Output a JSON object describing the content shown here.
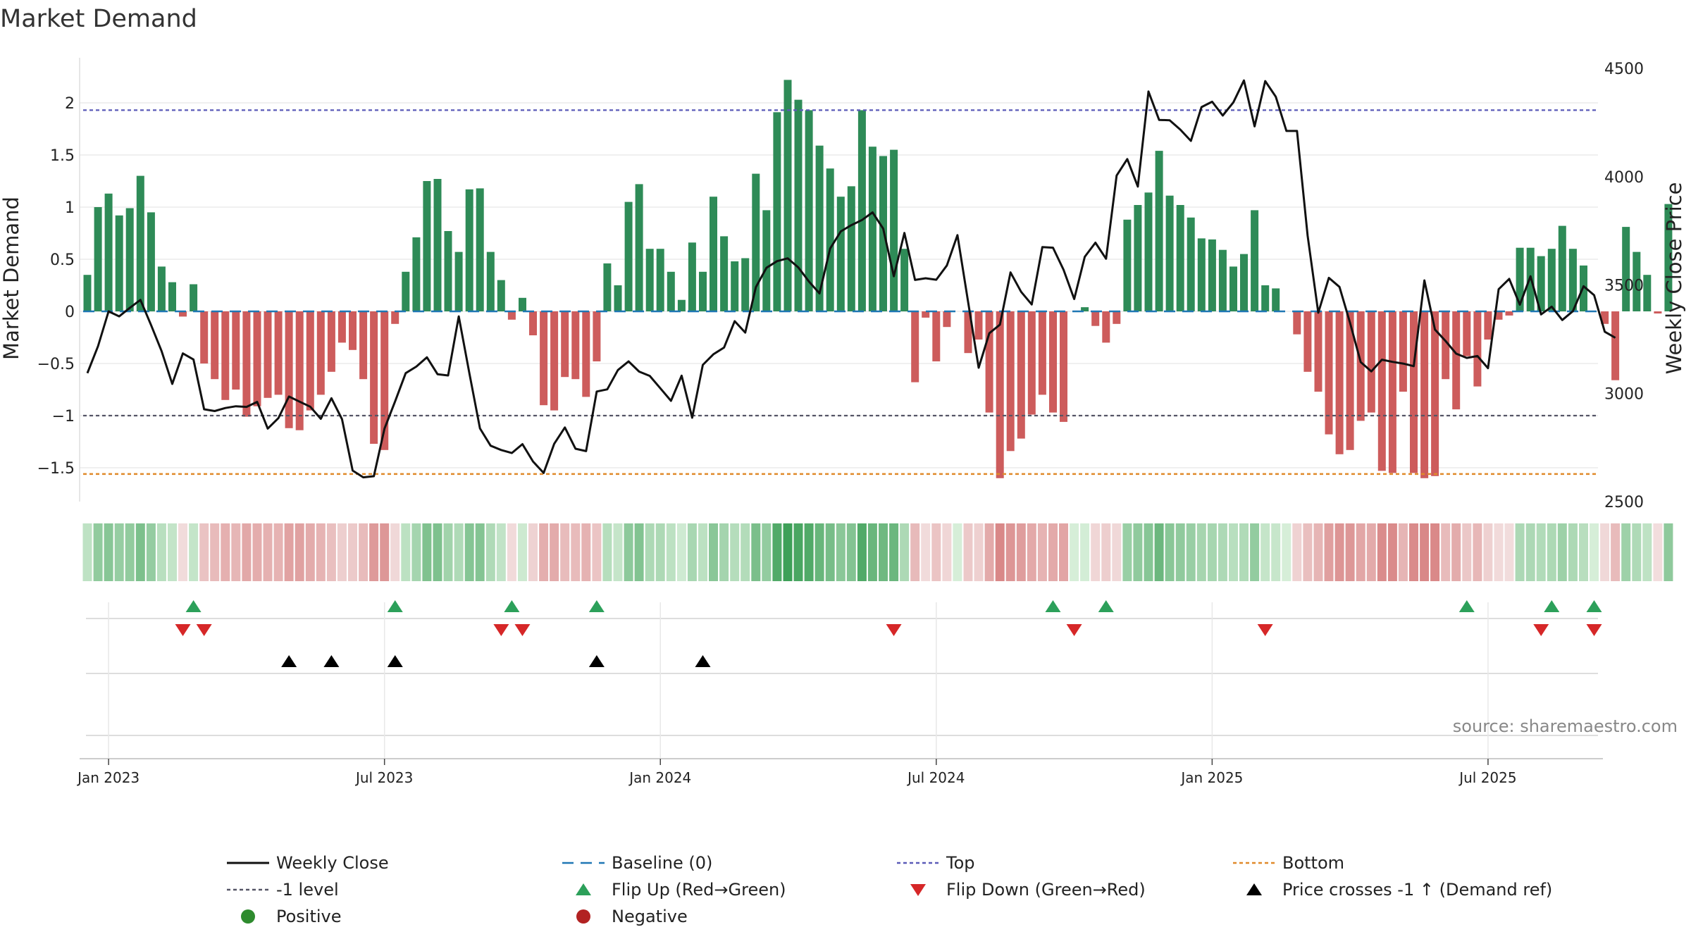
{
  "title": "Market Demand",
  "source": "source: sharemaestro.com",
  "colors": {
    "positive": "#2e8b57",
    "negative": "#cd5c5c",
    "price": "#111111",
    "baseline": "#1f77b4",
    "top": "#5b5bb8",
    "minus1": "#555566",
    "bottom": "#e08a2a",
    "flip_up": "#2ca05a",
    "flip_down": "#d62728",
    "cross": "#000000",
    "legend_pos": "#2e8b2e",
    "legend_neg": "#b22222"
  },
  "chart_data": {
    "type": "bar",
    "title": "Market Demand",
    "ylabel": "Market Demand",
    "y2label": "Weekly Close Price",
    "ylim": [
      -1.82,
      2.42
    ],
    "y2lim": [
      2500,
      4500
    ],
    "yticks": [
      {
        "value": 2,
        "label": "2"
      },
      {
        "value": 1.5,
        "label": "1.5"
      },
      {
        "value": 1,
        "label": "1"
      },
      {
        "value": 0.5,
        "label": "0.5"
      },
      {
        "value": 0,
        "label": "0"
      },
      {
        "value": -0.5,
        "label": "−0.5"
      },
      {
        "value": -1,
        "label": "−1"
      },
      {
        "value": -1.5,
        "label": "−1.5"
      }
    ],
    "y2ticks": [
      {
        "value": 4500,
        "label": "4500"
      },
      {
        "value": 4000,
        "label": "4000"
      },
      {
        "value": 3500,
        "label": "3500"
      },
      {
        "value": 3000,
        "label": "3000"
      },
      {
        "value": 2500,
        "label": "2500"
      }
    ],
    "xticks": [
      {
        "week": 2,
        "label": "Jan 2023"
      },
      {
        "week": 28,
        "label": "Jul 2023"
      },
      {
        "week": 54,
        "label": "Jan 2024"
      },
      {
        "week": 80,
        "label": "Jul 2024"
      },
      {
        "week": 106,
        "label": "Jan 2025"
      },
      {
        "week": 132,
        "label": "Jul 2025"
      }
    ],
    "week_count": 144,
    "reference_lines": {
      "baseline": 0,
      "top": 1.93,
      "minus1": -1,
      "bottom": -1.56
    },
    "demand": [
      0.35,
      1.0,
      1.13,
      0.92,
      0.99,
      1.3,
      0.95,
      0.43,
      0.28,
      -0.05,
      0.26,
      -0.5,
      -0.65,
      -0.85,
      -0.75,
      -1.01,
      -0.91,
      -0.83,
      -0.8,
      -1.12,
      -1.14,
      -0.95,
      -0.8,
      -0.58,
      -0.3,
      -0.37,
      -0.65,
      -1.27,
      -1.33,
      -0.12,
      0.38,
      0.71,
      1.25,
      1.27,
      0.77,
      0.57,
      1.17,
      1.18,
      0.57,
      0.3,
      -0.08,
      0.13,
      -0.23,
      -0.9,
      -0.95,
      -0.63,
      -0.65,
      -0.82,
      -0.48,
      0.46,
      0.25,
      1.05,
      1.22,
      0.6,
      0.6,
      0.38,
      0.11,
      0.66,
      0.38,
      1.1,
      0.72,
      0.48,
      0.51,
      1.32,
      0.97,
      1.91,
      2.22,
      2.03,
      1.93,
      1.59,
      1.37,
      1.1,
      1.2,
      1.93,
      1.58,
      1.49,
      1.55,
      0.6,
      -0.68,
      -0.06,
      -0.48,
      -0.15,
      0,
      -0.4,
      -0.27,
      -0.97,
      -1.6,
      -1.34,
      -1.22,
      -0.99,
      -0.8,
      -0.97,
      -1.06,
      0,
      0.04,
      -0.14,
      -0.3,
      -0.12,
      0.88,
      1.02,
      1.14,
      1.54,
      1.11,
      1.02,
      0.9,
      0.7,
      0.69,
      0.59,
      0.43,
      0.55,
      0.97,
      0.25,
      0.22,
      0,
      -0.22,
      -0.58,
      -0.77,
      -1.18,
      -1.37,
      -1.33,
      -1.05,
      -0.97,
      -1.53,
      -1.55,
      -0.77,
      -1.55,
      -1.6,
      -1.58,
      -0.65,
      -0.94,
      -0.43,
      -0.72,
      -0.27,
      -0.08,
      -0.04,
      0.61,
      0.61,
      0.53,
      0.6,
      0.82,
      0.6,
      0.44,
      0,
      -0.12,
      -0.66,
      0.81,
      0.57,
      0.35,
      -0.02,
      1.03
    ],
    "price": [
      3093,
      3217,
      3378,
      3355,
      3394,
      3431,
      3315,
      3194,
      3043,
      3184,
      3156,
      2926,
      2918,
      2932,
      2940,
      2937,
      2960,
      2837,
      2885,
      2985,
      2961,
      2938,
      2882,
      2977,
      2880,
      2643,
      2612,
      2617,
      2837,
      2962,
      3093,
      3123,
      3166,
      3088,
      3082,
      3355,
      3092,
      2838,
      2758,
      2738,
      2724,
      2765,
      2685,
      2632,
      2767,
      2842,
      2744,
      2733,
      3008,
      3018,
      3107,
      3147,
      3100,
      3080,
      3023,
      2965,
      3081,
      2887,
      3131,
      3180,
      3211,
      3333,
      3280,
      3490,
      3579,
      3610,
      3623,
      3581,
      3516,
      3461,
      3668,
      3747,
      3776,
      3800,
      3835,
      3760,
      3540,
      3740,
      3523,
      3531,
      3524,
      3590,
      3730,
      3422,
      3118,
      3277,
      3317,
      3558,
      3468,
      3410,
      3675,
      3672,
      3570,
      3435,
      3630,
      3695,
      3621,
      4005,
      4081,
      3954,
      4393,
      4262,
      4260,
      4217,
      4165,
      4321,
      4346,
      4282,
      4343,
      4444,
      4232,
      4441,
      4369,
      4211,
      4211,
      3727,
      3372,
      3533,
      3491,
      3325,
      3144,
      3101,
      3155,
      3145,
      3137,
      3125,
      3521,
      3294,
      3241,
      3183,
      3163,
      3172,
      3116,
      3480,
      3528,
      3409,
      3540,
      3364,
      3400,
      3338,
      3379,
      3494,
      3453,
      3284,
      3256
    ],
    "flip_up_weeks": [
      10,
      29,
      40,
      48,
      91,
      96,
      130,
      138,
      142
    ],
    "flip_down_weeks": [
      9,
      11,
      39,
      41,
      76,
      93,
      111,
      137,
      142
    ],
    "cross_weeks": [
      19,
      23,
      29,
      48,
      58
    ]
  },
  "legend": [
    {
      "key": "price",
      "label": "Weekly Close"
    },
    {
      "key": "baseline",
      "label": "Baseline (0)"
    },
    {
      "key": "top",
      "label": "Top"
    },
    {
      "key": "bottom",
      "label": "Bottom"
    },
    {
      "key": "minus1",
      "label": "-1 level"
    },
    {
      "key": "flip_up",
      "label": "Flip Up (Red→Green)"
    },
    {
      "key": "flip_down",
      "label": "Flip Down (Green→Red)"
    },
    {
      "key": "cross",
      "label": "Price crosses -1 ↑ (Demand ref)"
    },
    {
      "key": "pos",
      "label": "Positive"
    },
    {
      "key": "neg",
      "label": "Negative"
    }
  ]
}
